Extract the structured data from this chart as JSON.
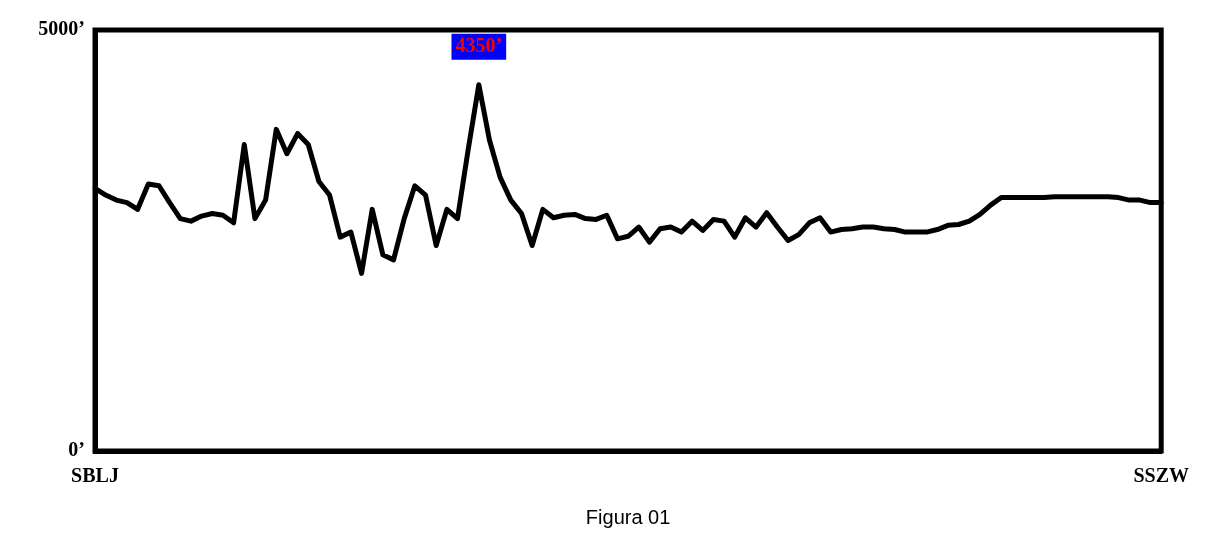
{
  "chart_data": {
    "type": "line",
    "categories": [
      "SBLJ",
      null,
      null,
      null,
      null,
      null,
      null,
      null,
      null,
      null,
      null,
      null,
      null,
      null,
      null,
      null,
      null,
      null,
      null,
      null,
      null,
      null,
      null,
      null,
      null,
      null,
      null,
      null,
      null,
      null,
      null,
      null,
      null,
      null,
      null,
      null,
      null,
      null,
      null,
      null,
      null,
      null,
      null,
      null,
      null,
      null,
      null,
      null,
      null,
      null,
      null,
      null,
      null,
      null,
      null,
      null,
      null,
      null,
      null,
      null,
      null,
      null,
      null,
      null,
      null,
      null,
      null,
      null,
      null,
      null,
      null,
      null,
      null,
      null,
      null,
      null,
      null,
      null,
      null,
      null,
      null,
      null,
      null,
      null,
      null,
      null,
      null,
      null,
      null,
      null,
      null,
      null,
      null,
      null,
      null,
      null,
      null,
      null,
      null,
      null,
      "SSZW"
    ],
    "series": [
      {
        "color": "#000000",
        "values": [
          3120,
          3040,
          2980,
          2950,
          2870,
          3170,
          3150,
          2950,
          2760,
          2730,
          2790,
          2820,
          2800,
          2710,
          3640,
          2760,
          2980,
          3820,
          3530,
          3770,
          3640,
          3200,
          3040,
          2540,
          2600,
          2110,
          2870,
          2330,
          2270,
          2760,
          3150,
          3040,
          2440,
          2870,
          2760,
          3580,
          4350,
          3690,
          3250,
          2980,
          2820,
          2440,
          2870,
          2770,
          2800,
          2810,
          2760,
          2750,
          2800,
          2520,
          2550,
          2660,
          2480,
          2640,
          2660,
          2600,
          2730,
          2620,
          2750,
          2730,
          2540,
          2770,
          2660,
          2830,
          2660,
          2500,
          2570,
          2710,
          2770,
          2600,
          2630,
          2640,
          2660,
          2660,
          2640,
          2630,
          2600,
          2600,
          2600,
          2630,
          2680,
          2690,
          2730,
          2810,
          2920,
          3010,
          3010,
          3010,
          3010,
          3010,
          3020,
          3020,
          3020,
          3020,
          3020,
          3020,
          3010,
          2980,
          2980,
          2950,
          2950
        ]
      }
    ],
    "ylim": [
      0,
      5000
    ],
    "yticks": [
      {
        "value": 0,
        "label": "0’"
      },
      {
        "value": 5000,
        "label": "5000’"
      }
    ],
    "grid": false,
    "legend": false,
    "marker": "none",
    "line_style": "solid",
    "annotations": [
      "Figura 01",
      {
        "text": "4350’",
        "y": 4350
      }
    ]
  }
}
